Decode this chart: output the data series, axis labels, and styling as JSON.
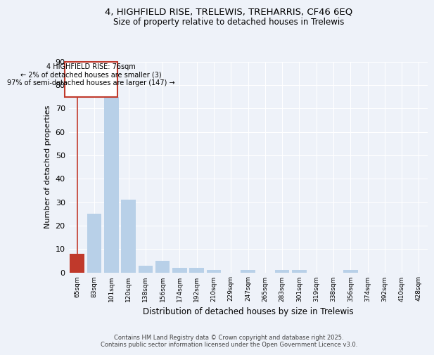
{
  "title_line1": "4, HIGHFIELD RISE, TRELEWIS, TREHARRIS, CF46 6EQ",
  "title_line2": "Size of property relative to detached houses in Trelewis",
  "xlabel": "Distribution of detached houses by size in Trelewis",
  "ylabel": "Number of detached properties",
  "categories": [
    "65sqm",
    "83sqm",
    "101sqm",
    "120sqm",
    "138sqm",
    "156sqm",
    "174sqm",
    "192sqm",
    "210sqm",
    "229sqm",
    "247sqm",
    "265sqm",
    "283sqm",
    "301sqm",
    "319sqm",
    "338sqm",
    "356sqm",
    "374sqm",
    "392sqm",
    "410sqm",
    "428sqm"
  ],
  "values": [
    8,
    25,
    75,
    31,
    3,
    5,
    2,
    2,
    1,
    0,
    1,
    0,
    1,
    1,
    0,
    0,
    1,
    0,
    0,
    0,
    0
  ],
  "bar_color": "#b8d0e8",
  "highlight_color": "#c0392b",
  "highlight_index": 0,
  "annotation_line1": "4 HIGHFIELD RISE: 76sqm",
  "annotation_line2": "← 2% of detached houses are smaller (3)",
  "annotation_line3": "97% of semi-detached houses are larger (147) →",
  "annotation_box_color": "#c0392b",
  "ylim": [
    0,
    90
  ],
  "yticks": [
    0,
    10,
    20,
    30,
    40,
    50,
    60,
    70,
    80,
    90
  ],
  "background_color": "#eef2f9",
  "grid_color": "#ffffff",
  "footer_line1": "Contains HM Land Registry data © Crown copyright and database right 2025.",
  "footer_line2": "Contains public sector information licensed under the Open Government Licence v3.0."
}
